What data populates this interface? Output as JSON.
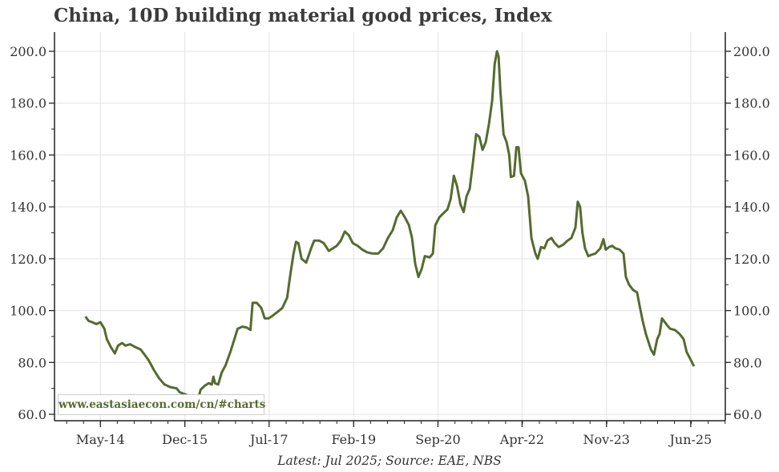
{
  "title": "China, 10D building material good prices, Index",
  "footer": "Latest: Jul 2025; Source: EAE, NBS",
  "watermark": "www.eastasiaecon.com/cn/#charts",
  "colors": {
    "line": "#556b2f",
    "grid": "#e3e3e3",
    "axis": "#222222"
  },
  "chart_data": {
    "type": "line",
    "title": "China, 10D building material good prices, Index",
    "xlabel": "",
    "ylabel": "",
    "ylim": [
      60,
      207
    ],
    "xlim": [
      "2013-06-20",
      "2026-01-24"
    ],
    "grid": true,
    "y_axis_sides": [
      "left",
      "right"
    ],
    "yticks": [
      60,
      80,
      100,
      120,
      140,
      160,
      180,
      200
    ],
    "ytick_labels": [
      "60.0",
      "80.0",
      "100.0",
      "120.0",
      "140.0",
      "160.0",
      "180.0",
      "200.0"
    ],
    "xticks": [
      "2014-05-01",
      "2015-12-01",
      "2017-07-01",
      "2019-02-01",
      "2020-09-01",
      "2022-04-01",
      "2023-11-01",
      "2025-06-01"
    ],
    "xtick_labels": [
      "May-14",
      "Dec-15",
      "Jul-17",
      "Feb-19",
      "Sep-20",
      "Apr-22",
      "Nov-23",
      "Jun-25"
    ],
    "series": [
      {
        "x": [
          "2014-01-18",
          "2014-02-09",
          "2014-03-06",
          "2014-04-03",
          "2014-05-01",
          "2014-05-28",
          "2014-06-14",
          "2014-07-11",
          "2014-08-08",
          "2014-08-30",
          "2014-09-27",
          "2014-10-19",
          "2014-11-21",
          "2014-12-24",
          "2015-02-01",
          "2015-02-28",
          "2015-03-26",
          "2015-05-04",
          "2015-06-06",
          "2015-07-14",
          "2015-08-22",
          "2015-10-05",
          "2015-10-27",
          "2015-12-10",
          "2016-01-24",
          "2016-02-26",
          "2016-03-18",
          "2016-04-15",
          "2016-05-12",
          "2016-06-03",
          "2016-06-14",
          "2016-06-25",
          "2016-07-17",
          "2016-08-09",
          "2016-09-06",
          "2016-10-08",
          "2016-11-05",
          "2016-11-27",
          "2016-12-30",
          "2017-01-27",
          "2017-02-23",
          "2017-03-10",
          "2017-04-07",
          "2017-05-09",
          "2017-06-01",
          "2017-06-28",
          "2017-07-25",
          "2017-08-28",
          "2017-09-30",
          "2017-11-02",
          "2017-11-24",
          "2017-12-16",
          "2018-01-02",
          "2018-01-18",
          "2018-02-09",
          "2018-03-12",
          "2018-04-15",
          "2018-05-06",
          "2018-06-09",
          "2018-07-11",
          "2018-08-14",
          "2018-09-11",
          "2018-10-08",
          "2018-11-05",
          "2018-12-02",
          "2018-12-30",
          "2019-01-26",
          "2019-02-28",
          "2019-04-01",
          "2019-05-04",
          "2019-06-11",
          "2019-07-19",
          "2019-08-22",
          "2019-09-24",
          "2019-10-27",
          "2019-11-24",
          "2019-12-21",
          "2020-01-18",
          "2020-02-15",
          "2020-03-07",
          "2020-03-29",
          "2020-04-20",
          "2020-05-12",
          "2020-06-03",
          "2020-07-06",
          "2020-07-28",
          "2020-08-14",
          "2020-09-11",
          "2020-10-08",
          "2020-11-05",
          "2020-11-27",
          "2020-12-19",
          "2021-01-10",
          "2021-02-02",
          "2021-02-24",
          "2021-03-16",
          "2021-04-07",
          "2021-04-29",
          "2021-05-21",
          "2021-06-12",
          "2021-07-04",
          "2021-07-26",
          "2021-08-17",
          "2021-09-08",
          "2021-09-25",
          "2021-10-11",
          "2021-10-22",
          "2021-11-03",
          "2021-11-25",
          "2021-12-16",
          "2022-01-03",
          "2022-01-14",
          "2022-02-05",
          "2022-02-21",
          "2022-03-08",
          "2022-03-24",
          "2022-04-21",
          "2022-05-13",
          "2022-06-04",
          "2022-07-01",
          "2022-07-17",
          "2022-08-09",
          "2022-09-01",
          "2022-09-22",
          "2022-10-19",
          "2022-11-11",
          "2022-12-08",
          "2023-01-10",
          "2023-02-07",
          "2023-03-05",
          "2023-04-02",
          "2023-04-18",
          "2023-05-04",
          "2023-05-20",
          "2023-06-07",
          "2023-06-29",
          "2023-07-20",
          "2023-08-17",
          "2023-09-20",
          "2023-10-11",
          "2023-10-27",
          "2023-11-19",
          "2023-12-10",
          "2024-01-02",
          "2024-01-30",
          "2024-02-26",
          "2024-03-13",
          "2024-04-04",
          "2024-05-01",
          "2024-05-29",
          "2024-06-15",
          "2024-07-06",
          "2024-07-28",
          "2024-09-01",
          "2024-09-22",
          "2024-10-14",
          "2024-10-30",
          "2024-11-16",
          "2024-12-19",
          "2025-01-10",
          "2025-02-13",
          "2025-03-16",
          "2025-04-13",
          "2025-05-04",
          "2025-06-01",
          "2025-06-23"
        ],
        "values": [
          97.7,
          96,
          95.5,
          94.8,
          95.5,
          93,
          89,
          86,
          83.5,
          86.5,
          87.5,
          86.5,
          87,
          86,
          85,
          83,
          81,
          77,
          74,
          71.5,
          70.5,
          70,
          68.5,
          67.5,
          66.5,
          65,
          69.5,
          71,
          72,
          71.5,
          74.5,
          72,
          71.5,
          76,
          79,
          84,
          89,
          93,
          93.8,
          93.5,
          92.5,
          103,
          103,
          101,
          97,
          97,
          98,
          99.5,
          101,
          105,
          114,
          122,
          126.5,
          126,
          120,
          118.5,
          124,
          127,
          127,
          126,
          123,
          124,
          125,
          127,
          130.5,
          129,
          126,
          125,
          123.5,
          122.5,
          122,
          122,
          124,
          128,
          131,
          136,
          138.5,
          136,
          133,
          128,
          118,
          113,
          116,
          121,
          120.5,
          122,
          133,
          136,
          137.5,
          139,
          143,
          152,
          148,
          141,
          138,
          144,
          147,
          157,
          168,
          167,
          162,
          165,
          172,
          181,
          195,
          200,
          198,
          185,
          168,
          165,
          160,
          151.5,
          152,
          163,
          163,
          153,
          150,
          144,
          128,
          122,
          120,
          124.5,
          124,
          127,
          128,
          126,
          124.5,
          125.5,
          127,
          128,
          132,
          142,
          140,
          130,
          124,
          121,
          121.5,
          122,
          124,
          127.5,
          123.5,
          124.5,
          125,
          124,
          123.5,
          122,
          113,
          110,
          108,
          107,
          102,
          96,
          91,
          85,
          83,
          89,
          91,
          97,
          94.5,
          93,
          92.5,
          91,
          89,
          84,
          81,
          78.5
        ]
      }
    ]
  }
}
